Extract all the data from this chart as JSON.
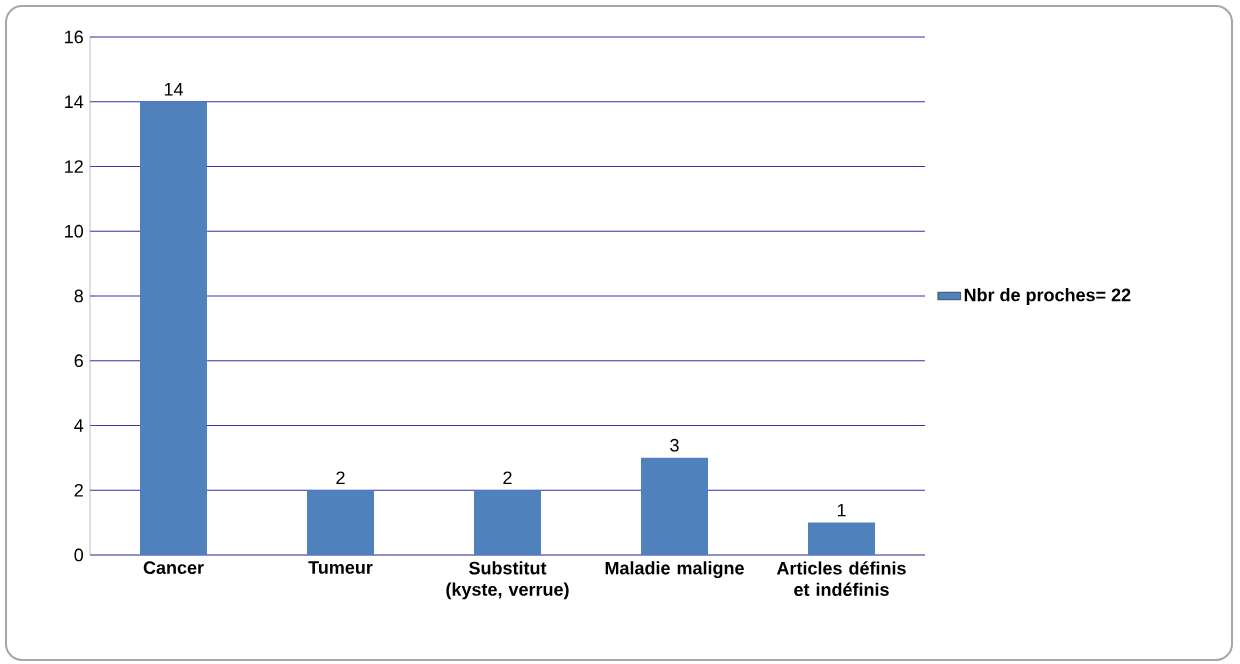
{
  "chart_data": {
    "type": "bar",
    "categories": [
      "Cancer",
      "Tumeur",
      "Substitut (kyste, verrue)",
      "Maladie maligne",
      "Articles définis et indéfinis"
    ],
    "series": [
      {
        "name": "Nbr de proches= 22",
        "color": "#4f81bd",
        "values": [
          14,
          2,
          2,
          3,
          1
        ]
      }
    ],
    "ylim": [
      0,
      16
    ],
    "yticks": [
      0,
      2,
      4,
      6,
      8,
      10,
      12,
      14,
      16
    ],
    "grid": "y",
    "legend": "right",
    "data_labels": true
  }
}
